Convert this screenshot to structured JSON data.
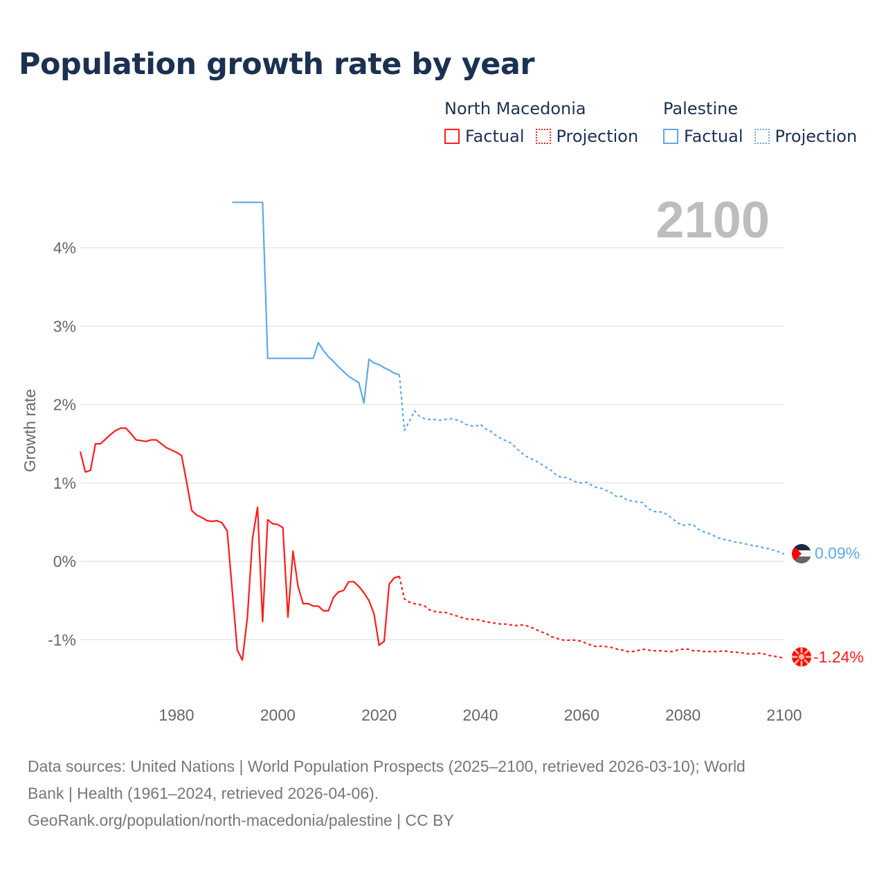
{
  "title": "Population growth rate by year",
  "legend": {
    "groups": [
      {
        "name": "North Macedonia",
        "factual": "Factual",
        "projection": "Projection",
        "color": "#ff1a1a"
      },
      {
        "name": "Palestine",
        "factual": "Factual",
        "projection": "Projection",
        "color": "#5fa8e8"
      }
    ]
  },
  "year_label": "2100",
  "end_labels": {
    "north_macedonia": "-1.24%",
    "palestine": "0.09%"
  },
  "footer": {
    "line1": "Data sources: United Nations | World Population Prospects (2025–2100, retrieved 2026-03-10); World",
    "line2": "Bank | Health (1961–2024, retrieved 2026-04-06).",
    "line3": "GeoRank.org/population/north-macedonia/palestine | CC BY"
  },
  "chart_data": {
    "type": "line",
    "title": "Population growth rate by year",
    "xlabel": "",
    "ylabel": "Growth rate",
    "xlim": [
      1961,
      2100
    ],
    "ylim": [
      -1.5,
      4.6
    ],
    "x_ticks": [
      1980,
      2000,
      2020,
      2040,
      2060,
      2080,
      2100
    ],
    "x_tick_labels": [
      "1980",
      "2000",
      "2020",
      "2040",
      "2060",
      "2080",
      "2100"
    ],
    "y_ticks": [
      -1,
      0,
      1,
      2,
      3,
      4
    ],
    "y_tick_labels": [
      "-1%",
      "0%",
      "1%",
      "2%",
      "3%",
      "4%"
    ],
    "grid": true,
    "legend_position": "top-right",
    "series": [
      {
        "name": "North Macedonia Factual",
        "color": "#ff1a1a",
        "style": "solid",
        "x_start": 1961,
        "values": [
          1.4,
          1.14,
          1.16,
          1.5,
          1.5,
          1.56,
          1.62,
          1.67,
          1.7,
          1.7,
          1.63,
          1.55,
          1.54,
          1.53,
          1.55,
          1.55,
          1.5,
          1.45,
          1.42,
          1.39,
          1.35,
          1.01,
          0.65,
          0.59,
          0.56,
          0.52,
          0.51,
          0.52,
          0.49,
          0.39,
          -0.37,
          -1.13,
          -1.26,
          -0.71,
          0.29,
          0.69,
          -0.77,
          0.53,
          0.48,
          0.47,
          0.43,
          -0.71,
          0.13,
          -0.32,
          -0.54,
          -0.54,
          -0.57,
          -0.57,
          -0.63,
          -0.63,
          -0.46,
          -0.39,
          -0.37,
          -0.26,
          -0.26,
          -0.32,
          -0.4,
          -0.5,
          -0.67,
          -1.07,
          -1.02,
          -0.29,
          -0.21,
          -0.19
        ]
      },
      {
        "name": "North Macedonia Projection",
        "color": "#ff1a1a",
        "style": "dashed",
        "x_start": 2025,
        "values": [
          -0.48,
          -0.52,
          -0.54,
          -0.55,
          -0.57,
          -0.62,
          -0.64,
          -0.65,
          -0.65,
          -0.67,
          -0.69,
          -0.71,
          -0.73,
          -0.74,
          -0.74,
          -0.75,
          -0.77,
          -0.78,
          -0.79,
          -0.8,
          -0.8,
          -0.81,
          -0.82,
          -0.81,
          -0.82,
          -0.84,
          -0.87,
          -0.9,
          -0.92,
          -0.96,
          -0.98,
          -1.0,
          -1.01,
          -1.0,
          -1.01,
          -1.02,
          -1.05,
          -1.07,
          -1.09,
          -1.08,
          -1.09,
          -1.1,
          -1.12,
          -1.13,
          -1.15,
          -1.15,
          -1.14,
          -1.12,
          -1.13,
          -1.14,
          -1.14,
          -1.14,
          -1.15,
          -1.15,
          -1.13,
          -1.12,
          -1.12,
          -1.14,
          -1.14,
          -1.15,
          -1.15,
          -1.15,
          -1.15,
          -1.14,
          -1.15,
          -1.16,
          -1.16,
          -1.17,
          -1.18,
          -1.18,
          -1.17,
          -1.18,
          -1.2,
          -1.21,
          -1.22,
          -1.24
        ]
      },
      {
        "name": "Palestine Factual",
        "color": "#5fa8e8",
        "style": "solid",
        "x_start": 1991,
        "values": [
          4.58,
          4.58,
          4.58,
          4.58,
          4.58,
          4.58,
          4.58,
          2.59,
          2.59,
          2.59,
          2.59,
          2.59,
          2.59,
          2.59,
          2.59,
          2.59,
          2.59,
          2.79,
          2.69,
          2.61,
          2.55,
          2.48,
          2.42,
          2.36,
          2.32,
          2.28,
          2.02,
          2.58,
          2.53,
          2.51,
          2.47,
          2.44,
          2.4,
          2.38
        ]
      },
      {
        "name": "Palestine Projection",
        "color": "#5fa8e8",
        "style": "dashed",
        "x_start": 2025,
        "values": [
          1.67,
          1.79,
          1.92,
          1.85,
          1.82,
          1.81,
          1.81,
          1.8,
          1.81,
          1.82,
          1.81,
          1.79,
          1.75,
          1.73,
          1.72,
          1.75,
          1.69,
          1.66,
          1.61,
          1.57,
          1.54,
          1.51,
          1.45,
          1.39,
          1.34,
          1.31,
          1.28,
          1.24,
          1.2,
          1.16,
          1.1,
          1.07,
          1.07,
          1.04,
          1.01,
          1.0,
          1.01,
          0.97,
          0.94,
          0.93,
          0.9,
          0.87,
          0.82,
          0.83,
          0.78,
          0.77,
          0.76,
          0.75,
          0.68,
          0.64,
          0.63,
          0.63,
          0.59,
          0.54,
          0.49,
          0.46,
          0.47,
          0.47,
          0.41,
          0.38,
          0.36,
          0.33,
          0.3,
          0.28,
          0.27,
          0.25,
          0.24,
          0.23,
          0.21,
          0.2,
          0.19,
          0.17,
          0.16,
          0.14,
          0.12,
          0.09
        ]
      }
    ]
  }
}
